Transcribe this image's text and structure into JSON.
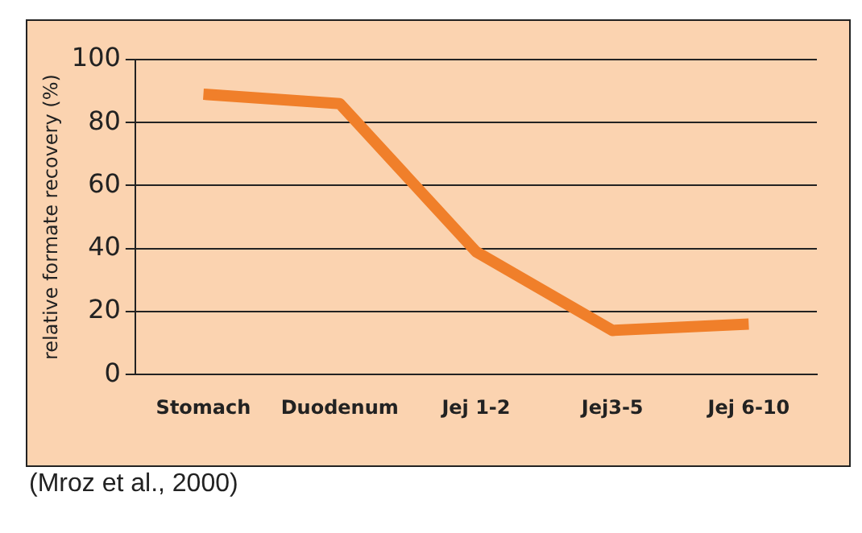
{
  "chart_data": {
    "type": "line",
    "ylabel": "relative formate recovery (%)",
    "categories": [
      "Stomach",
      "Duodenum",
      "Jej 1-2",
      "Jej3-5",
      "Jej 6-10"
    ],
    "series": [
      {
        "color": "#f07f2a",
        "values": [
          89,
          86,
          39,
          14,
          16
        ]
      }
    ],
    "ylim": [
      0,
      100
    ],
    "yticks": [
      0,
      20,
      40,
      60,
      80,
      100
    ],
    "grid": "y",
    "legend": false,
    "marker": "none",
    "line_style": "solid",
    "annotations": [
      "(Mroz et al., 2000)"
    ]
  }
}
